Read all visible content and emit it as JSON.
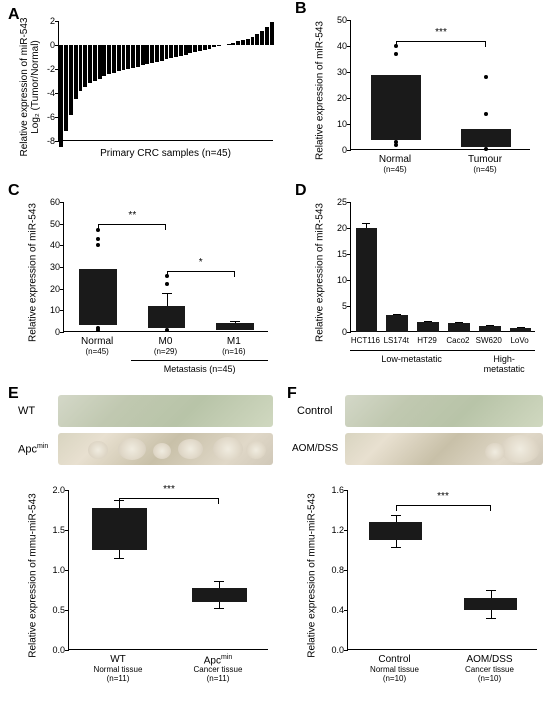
{
  "panelA": {
    "label": "A",
    "ylabel": "Relative expression of miR-543\nLog₂ (Tumor/Normal)",
    "xlabel": "Primary CRC samples (n=45)",
    "ylim": [
      -8,
      2
    ],
    "ytick_step": 2,
    "values": [
      -8.5,
      -7.2,
      -5.8,
      -4.5,
      -3.8,
      -3.5,
      -3.2,
      -3.0,
      -2.8,
      -2.6,
      -2.4,
      -2.3,
      -2.2,
      -2.1,
      -2.0,
      -1.9,
      -1.8,
      -1.7,
      -1.6,
      -1.5,
      -1.4,
      -1.3,
      -1.2,
      -1.1,
      -1.0,
      -0.9,
      -0.8,
      -0.7,
      -0.6,
      -0.5,
      -0.4,
      -0.3,
      -0.2,
      -0.1,
      0.0,
      0.1,
      0.2,
      0.3,
      0.4,
      0.5,
      0.7,
      0.9,
      1.2,
      1.5,
      1.9
    ],
    "bar_color": "#000000"
  },
  "panelB": {
    "label": "B",
    "ylabel": "Relative expression of miR-543",
    "ylim": [
      0,
      50
    ],
    "ytick_step": 10,
    "categories": [
      "Normal",
      "Tumour"
    ],
    "sublabels": [
      "(n=45)",
      "(n=45)"
    ],
    "box_low": [
      4,
      1
    ],
    "box_high": [
      29,
      8
    ],
    "outliers_top": [
      [
        37,
        40
      ],
      [
        14,
        28
      ]
    ],
    "outliers_bot": [
      [
        2,
        3
      ],
      [
        0.5
      ]
    ],
    "significance": "***"
  },
  "panelC": {
    "label": "C",
    "ylabel": "Relative expression of miR-543",
    "ylim": [
      0,
      60
    ],
    "ytick_step": 10,
    "categories": [
      "Normal",
      "M0",
      "M1"
    ],
    "sublabels": [
      "(n=45)",
      "(n=29)",
      "(n=16)"
    ],
    "group_label": "Metastasis (n=45)",
    "box_low": [
      3,
      2,
      1
    ],
    "box_high": [
      29,
      12,
      4
    ],
    "whisker_top": [
      29,
      18,
      5
    ],
    "outliers_top": [
      [
        40,
        43,
        47
      ],
      [
        22,
        26
      ],
      []
    ],
    "outliers_bot": [
      [
        1,
        2
      ],
      [
        1
      ],
      []
    ],
    "sig1": "**",
    "sig2": "*"
  },
  "panelD": {
    "label": "D",
    "ylabel": "Relative expression of miR-543",
    "ylim": [
      0,
      25
    ],
    "ytick_step": 5,
    "categories": [
      "HCT116",
      "LS174t",
      "HT29",
      "Caco2",
      "SW620",
      "LoVo"
    ],
    "values": [
      20,
      3.2,
      2,
      1.8,
      1.2,
      0.8
    ],
    "errors": [
      1,
      0.3,
      0.2,
      0.2,
      0.15,
      0.1
    ],
    "group1": "Low-metastatic",
    "group2": "High-metastatic"
  },
  "panelE": {
    "label": "E",
    "tissue_labels": [
      "WT",
      "Apcᵐⁱⁿ"
    ],
    "ylabel": "Relative expression of mmu-miR-543",
    "ylim": [
      0,
      2.0
    ],
    "ytick_step": 0.5,
    "categories": [
      "WT",
      "Apcᵐⁱⁿ"
    ],
    "sublabels": [
      "Normal tissue\n(n=11)",
      "Cancer tissue\n(n=11)"
    ],
    "box_low": [
      1.25,
      0.6
    ],
    "box_high": [
      1.78,
      0.78
    ],
    "whisker": [
      0.1,
      0.08
    ],
    "significance": "***"
  },
  "panelF": {
    "label": "F",
    "tissue_labels": [
      "Control",
      "AOM/DSS"
    ],
    "ylabel": "Relative expression of mmu-miR-543",
    "ylim": [
      0,
      1.6
    ],
    "ytick_step": 0.4,
    "categories": [
      "Control",
      "AOM/DSS"
    ],
    "sublabels": [
      "Normal tissue\n(n=10)",
      "Cancer tissue\n(n=10)"
    ],
    "box_low": [
      1.1,
      0.4
    ],
    "box_high": [
      1.28,
      0.52
    ],
    "whisker": [
      0.07,
      0.08
    ],
    "significance": "***"
  },
  "colors": {
    "bar": "#1a1a1a",
    "background": "#ffffff",
    "axis": "#000000"
  }
}
